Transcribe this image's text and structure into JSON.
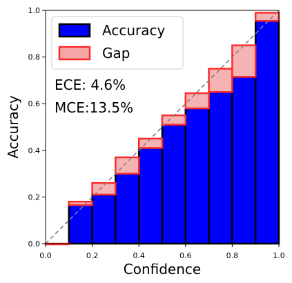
{
  "chart_data": {
    "type": "bar",
    "xlabel": "Confidence",
    "ylabel": "Accuracy",
    "xlim": [
      0.0,
      1.0
    ],
    "ylim": [
      0.0,
      1.0
    ],
    "x_ticks": [
      "0.0",
      "0.2",
      "0.4",
      "0.6",
      "0.8",
      "1.0"
    ],
    "y_ticks": [
      "0.0",
      "0.2",
      "0.4",
      "0.6",
      "0.8",
      "1.0"
    ],
    "bin_edges": [
      0.0,
      0.1,
      0.2,
      0.3,
      0.4,
      0.5,
      0.6,
      0.7,
      0.8,
      0.9,
      1.0
    ],
    "series": [
      {
        "name": "Accuracy",
        "values": [
          0.0,
          0.165,
          0.21,
          0.3,
          0.41,
          0.51,
          0.58,
          0.65,
          0.715,
          0.955
        ]
      },
      {
        "name": "Gap",
        "lower": [
          0.0,
          0.165,
          0.21,
          0.3,
          0.41,
          0.51,
          0.58,
          0.65,
          0.715,
          0.955
        ],
        "upper": [
          0.0,
          0.18,
          0.26,
          0.37,
          0.45,
          0.55,
          0.645,
          0.75,
          0.85,
          0.99
        ]
      }
    ],
    "diagonal": true,
    "grid": false,
    "legend_position": "top-left",
    "annotations": [
      "ECE: 4.6%",
      "MCE:13.5%"
    ],
    "colors": {
      "accuracy_fill": "#0000ff",
      "accuracy_edge": "#000000",
      "gap_fill": "#f4a6a6",
      "gap_edge": "#ff2a2a",
      "diagonal": "#808080"
    }
  }
}
